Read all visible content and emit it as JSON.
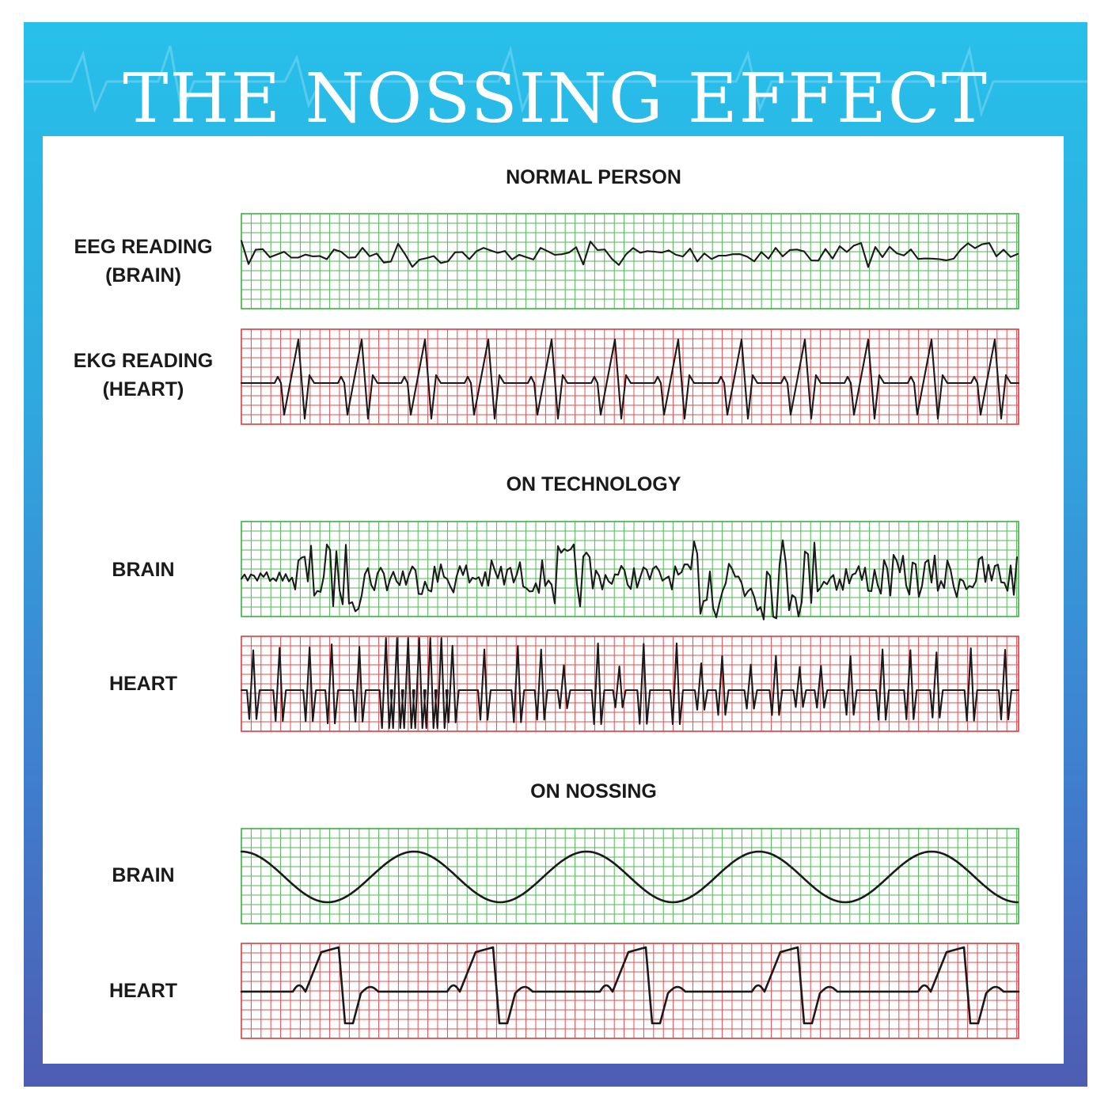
{
  "title": "THE NOSSING EFFECT",
  "colors": {
    "grid_green": "#3cb043",
    "grid_red": "#e0393e",
    "trace": "#1a1a1a",
    "frame_top": "#27c0ea",
    "frame_bottom": "#4e5db3"
  },
  "sections": [
    {
      "title": "NORMAL PERSON",
      "rows": [
        {
          "label_line1": "EEG READING",
          "label_line2": "(BRAIN)",
          "kind": "brain",
          "grid_color": "green",
          "trace": "normal-eeg"
        },
        {
          "label_line1": "EKG READING",
          "label_line2": "(HEART)",
          "kind": "heart",
          "grid_color": "red",
          "trace": "normal-ekg"
        }
      ]
    },
    {
      "title": "ON TECHNOLOGY",
      "rows": [
        {
          "label_line1": "BRAIN",
          "label_line2": "",
          "kind": "brain",
          "grid_color": "green",
          "trace": "chaotic-eeg"
        },
        {
          "label_line1": "HEART",
          "label_line2": "",
          "kind": "heart",
          "grid_color": "red",
          "trace": "chaotic-ekg"
        }
      ]
    },
    {
      "title": "ON NOSSING",
      "rows": [
        {
          "label_line1": "BRAIN",
          "label_line2": "",
          "kind": "brain",
          "grid_color": "green",
          "trace": "smooth-sine"
        },
        {
          "label_line1": "HEART",
          "label_line2": "",
          "kind": "heart",
          "grid_color": "red",
          "trace": "calm-ekg"
        }
      ]
    }
  ]
}
